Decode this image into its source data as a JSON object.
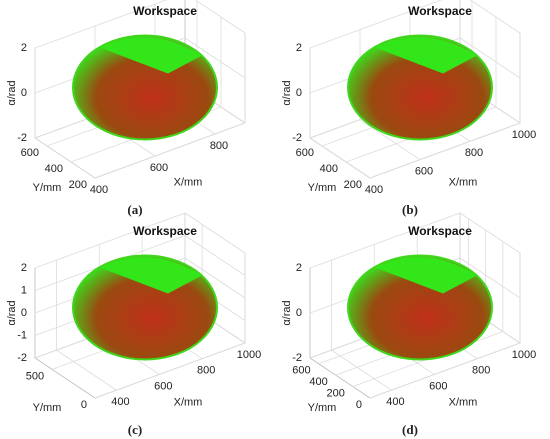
{
  "chart_data": [
    {
      "type": "scatter3d",
      "title": "Workspace",
      "caption": "(a)",
      "xlabel": "X/mm",
      "ylabel": "Y/mm",
      "zlabel": "α/rad",
      "xlim": [
        400,
        900
      ],
      "ylim": [
        200,
        700
      ],
      "zlim": [
        -2,
        2
      ],
      "xticks": [
        400,
        600,
        800
      ],
      "yticks": [
        200,
        400,
        600
      ],
      "zticks": [
        -2,
        0,
        2
      ]
    },
    {
      "type": "scatter3d",
      "title": "Workspace",
      "caption": "(b)",
      "xlabel": "X/mm",
      "ylabel": "Y/mm",
      "zlabel": "α/rad",
      "xlim": [
        400,
        1000
      ],
      "ylim": [
        200,
        700
      ],
      "zlim": [
        -2,
        2
      ],
      "xticks": [
        400,
        600,
        800,
        1000
      ],
      "yticks": [
        200,
        400,
        600
      ],
      "zticks": [
        -2,
        0,
        2
      ]
    },
    {
      "type": "scatter3d",
      "title": "Workspace",
      "caption": "(c)",
      "xlabel": "X/mm",
      "ylabel": "Y/mm",
      "zlabel": "α/rad",
      "xlim": [
        300,
        1000
      ],
      "ylim": [
        0,
        700
      ],
      "zlim": [
        -2,
        2
      ],
      "xticks": [
        400,
        600,
        800,
        1000
      ],
      "yticks": [
        0,
        500
      ],
      "zticks": [
        -2,
        -1,
        0,
        1,
        2
      ]
    },
    {
      "type": "scatter3d",
      "title": "Workspace",
      "caption": "(d)",
      "xlabel": "X/mm",
      "ylabel": "Y/mm",
      "zlabel": "α/rad",
      "xlim": [
        300,
        1000
      ],
      "ylim": [
        0,
        700
      ],
      "zlim": [
        -2,
        2
      ],
      "xticks": [
        400,
        600,
        800,
        1000
      ],
      "yticks": [
        0,
        200,
        400,
        600
      ],
      "zticks": [
        -2,
        0,
        2
      ]
    }
  ]
}
